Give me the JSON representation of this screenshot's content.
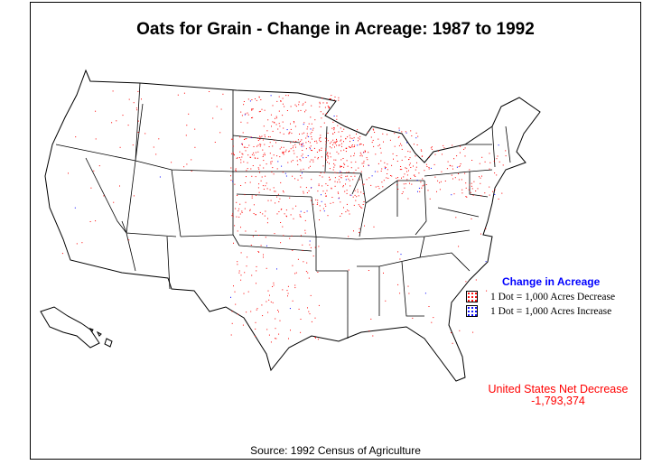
{
  "title": "Oats for Grain - Change in Acreage:  1987 to 1992",
  "legend": {
    "title": "Change in Acreage",
    "items": [
      {
        "label": "1 Dot = 1,000 Acres  Decrease",
        "color": "#ff0000"
      },
      {
        "label": "1 Dot = 1,000 Acres Increase",
        "color": "#0000ff"
      }
    ]
  },
  "net": {
    "label": "United States Net Decrease",
    "value": "-1,793,374"
  },
  "source": "Source:  1992 Census of Agriculture",
  "colors": {
    "decrease": "#ff0000",
    "increase": "#0000ff",
    "outline": "#000000"
  }
}
